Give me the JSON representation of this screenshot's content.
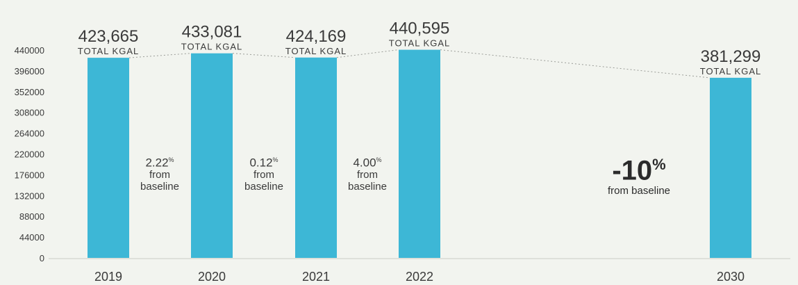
{
  "chart_data": {
    "type": "bar",
    "categories": [
      "2019",
      "2020",
      "2021",
      "2022",
      "2030"
    ],
    "values": [
      423665,
      433081,
      424169,
      440595,
      381299
    ],
    "value_labels": [
      "423,665",
      "433,081",
      "424,169",
      "440,595",
      "381,299"
    ],
    "value_sublabel": "TOTAL KGAL",
    "ylim": [
      0,
      440000
    ],
    "yticks": [
      "440000",
      "396000",
      "352000",
      "308000",
      "264000",
      "220000",
      "176000",
      "132000",
      "88000",
      "44000",
      "0"
    ],
    "bar_color": "#3db7d6",
    "connector": "dotted",
    "annotations": [
      {
        "pct": "2.22",
        "unit": "%",
        "line1": "from",
        "line2": "baseline"
      },
      {
        "pct": "0.12",
        "unit": "%",
        "line1": "from",
        "line2": "baseline"
      },
      {
        "pct": "4.00",
        "unit": "%",
        "line1": "from",
        "line2": "baseline"
      }
    ],
    "target_annotation": {
      "pct": "-10",
      "unit": "%",
      "text": "from baseline"
    }
  }
}
